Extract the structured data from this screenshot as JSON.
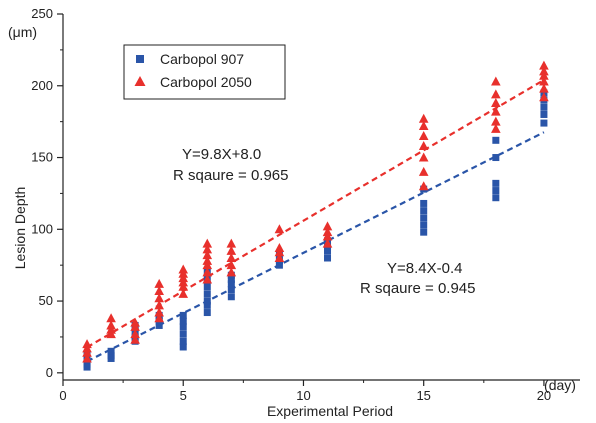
{
  "chart_data": {
    "type": "scatter",
    "xlabel": "Experimental Period",
    "xunit": "(day)",
    "ylabel": "Lesion Depth",
    "yunit": "(μm)",
    "xlim": [
      0,
      21.5
    ],
    "ylim": [
      -5,
      250
    ],
    "xticks": [
      0,
      5,
      10,
      15,
      20
    ],
    "yticks": [
      0,
      50,
      100,
      150,
      200,
      250
    ],
    "grid": false,
    "legend": "top-left",
    "series": [
      {
        "name": "Carbopol 907",
        "marker": "square",
        "color": "#2a55a8",
        "points": [
          [
            1,
            4
          ],
          [
            1,
            6
          ],
          [
            1,
            9
          ],
          [
            1,
            12
          ],
          [
            2,
            10
          ],
          [
            2,
            12
          ],
          [
            2,
            15
          ],
          [
            3,
            22
          ],
          [
            3,
            25
          ],
          [
            3,
            28
          ],
          [
            3,
            31
          ],
          [
            3,
            33
          ],
          [
            4,
            33
          ],
          [
            4,
            36
          ],
          [
            4,
            38
          ],
          [
            4,
            40
          ],
          [
            5,
            18
          ],
          [
            5,
            22
          ],
          [
            5,
            27
          ],
          [
            5,
            32
          ],
          [
            5,
            36
          ],
          [
            5,
            40
          ],
          [
            6,
            42
          ],
          [
            6,
            47
          ],
          [
            6,
            50
          ],
          [
            6,
            55
          ],
          [
            6,
            60
          ],
          [
            6,
            65
          ],
          [
            6,
            70
          ],
          [
            7,
            53
          ],
          [
            7,
            58
          ],
          [
            7,
            62
          ],
          [
            7,
            65
          ],
          [
            7,
            68
          ],
          [
            9,
            75
          ],
          [
            9,
            78
          ],
          [
            9,
            82
          ],
          [
            11,
            80
          ],
          [
            11,
            85
          ],
          [
            11,
            88
          ],
          [
            11,
            92
          ],
          [
            15,
            98
          ],
          [
            15,
            103
          ],
          [
            15,
            108
          ],
          [
            15,
            113
          ],
          [
            15,
            118
          ],
          [
            15,
            128
          ],
          [
            18,
            122
          ],
          [
            18,
            127
          ],
          [
            18,
            132
          ],
          [
            18,
            150
          ],
          [
            18,
            162
          ],
          [
            20,
            174
          ],
          [
            20,
            180
          ],
          [
            20,
            185
          ],
          [
            20,
            190
          ],
          [
            20,
            195
          ]
        ],
        "fit": {
          "slope": 8.4,
          "intercept": -0.4,
          "equation": "Y=8.4X-0.4",
          "r2_label": "R sqaure = 0.945"
        }
      },
      {
        "name": "Carbopol 2050",
        "marker": "triangle",
        "color": "#e8302c",
        "points": [
          [
            1,
            10
          ],
          [
            1,
            14
          ],
          [
            1,
            17
          ],
          [
            1,
            20
          ],
          [
            2,
            27
          ],
          [
            2,
            30
          ],
          [
            2,
            33
          ],
          [
            2,
            38
          ],
          [
            3,
            23
          ],
          [
            3,
            27
          ],
          [
            3,
            32
          ],
          [
            3,
            35
          ],
          [
            4,
            38
          ],
          [
            4,
            42
          ],
          [
            4,
            47
          ],
          [
            4,
            52
          ],
          [
            4,
            57
          ],
          [
            4,
            62
          ],
          [
            5,
            55
          ],
          [
            5,
            60
          ],
          [
            5,
            63
          ],
          [
            5,
            66
          ],
          [
            5,
            69
          ],
          [
            5,
            72
          ],
          [
            6,
            65
          ],
          [
            6,
            70
          ],
          [
            6,
            75
          ],
          [
            6,
            78
          ],
          [
            6,
            82
          ],
          [
            6,
            86
          ],
          [
            6,
            90
          ],
          [
            7,
            70
          ],
          [
            7,
            75
          ],
          [
            7,
            80
          ],
          [
            7,
            85
          ],
          [
            7,
            90
          ],
          [
            9,
            80
          ],
          [
            9,
            84
          ],
          [
            9,
            87
          ],
          [
            9,
            100
          ],
          [
            11,
            90
          ],
          [
            11,
            95
          ],
          [
            11,
            98
          ],
          [
            11,
            102
          ],
          [
            15,
            130
          ],
          [
            15,
            140
          ],
          [
            15,
            150
          ],
          [
            15,
            158
          ],
          [
            15,
            165
          ],
          [
            15,
            172
          ],
          [
            15,
            177
          ],
          [
            18,
            170
          ],
          [
            18,
            175
          ],
          [
            18,
            182
          ],
          [
            18,
            188
          ],
          [
            18,
            194
          ],
          [
            18,
            203
          ],
          [
            20,
            192
          ],
          [
            20,
            198
          ],
          [
            20,
            203
          ],
          [
            20,
            207
          ],
          [
            20,
            210
          ],
          [
            20,
            214
          ]
        ],
        "fit": {
          "slope": 9.8,
          "intercept": 8.0,
          "equation": "Y=9.8X+8.0",
          "r2_label": "R sqaure = 0.965"
        }
      }
    ]
  }
}
